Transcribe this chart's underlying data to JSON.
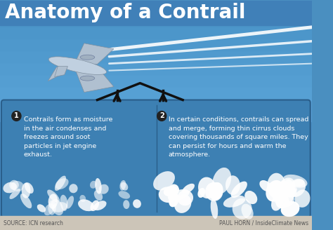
{
  "title": "Anatomy of a Contrail",
  "title_color": "#ffffff",
  "title_fontsize": 20,
  "bg_color": "#4a8fc0",
  "footer_bg": "#ccc5b8",
  "source_text": "SOURCE: ICN research",
  "credit_text": "PAUL HORN / InsideClimate News",
  "box_bg": "#3d80b3",
  "box_border": "#2a5e8a",
  "label1_num": "1",
  "label1_text": "Contrails form as moisture\nin the air condenses and\nfreezes around soot\nparticles in jet engine\nexhaust.",
  "label2_num": "2",
  "label2_text": "In certain conditions, contrails can spread\nand merge, forming thin cirrus clouds\ncovering thousands of square miles. They\ncan persist for hours and warm the\natmosphere.",
  "num_bg": "#222222",
  "text_color": "#ffffff",
  "arrow_color": "#111111"
}
